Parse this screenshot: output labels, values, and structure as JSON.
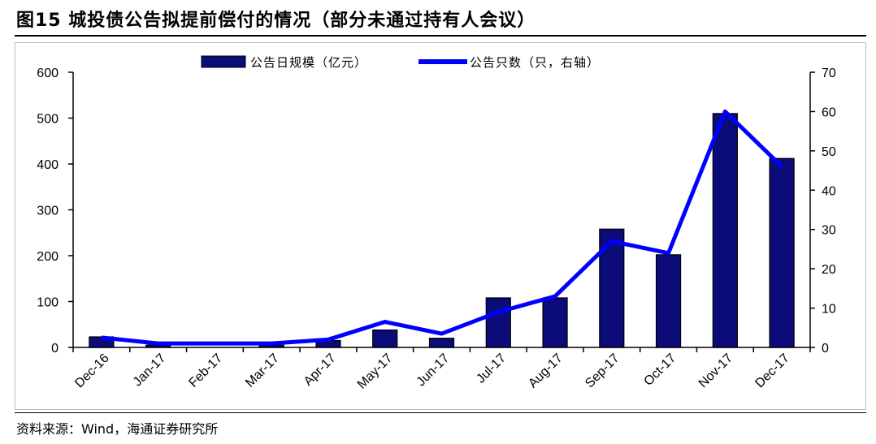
{
  "title": "图15 城投债公告拟提前偿付的情况（部分未通过持有人会议）",
  "source": "资料来源：Wind，海通证券研究所",
  "chart_data": {
    "type": "bar+line",
    "categories": [
      "Dec-16",
      "Jan-17",
      "Feb-17",
      "Mar-17",
      "Apr-17",
      "May-17",
      "Jun-17",
      "Jul-17",
      "Aug-17",
      "Sep-17",
      "Oct-17",
      "Nov-17",
      "Dec-17"
    ],
    "series": [
      {
        "name": "公告日规模（亿元）",
        "type": "bar",
        "axis": "left",
        "color": "#0b0b7a",
        "values": [
          23,
          5,
          0,
          5,
          15,
          38,
          20,
          108,
          108,
          258,
          202,
          510,
          412
        ]
      },
      {
        "name": "公告只数（只，右轴）",
        "type": "line",
        "axis": "right",
        "color": "#0000ff",
        "values": [
          2.5,
          1,
          1,
          1,
          2,
          6.5,
          3.5,
          9,
          13,
          27,
          24,
          60,
          46
        ]
      }
    ],
    "y_left": {
      "min": 0,
      "max": 600,
      "ticks": [
        0,
        100,
        200,
        300,
        400,
        500,
        600
      ]
    },
    "y_right": {
      "min": 0,
      "max": 70,
      "ticks": [
        0,
        10,
        20,
        30,
        40,
        50,
        60,
        70
      ]
    },
    "legend_position": "top",
    "grid": false
  }
}
